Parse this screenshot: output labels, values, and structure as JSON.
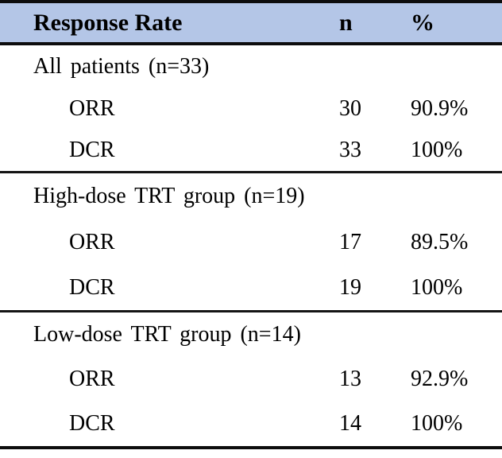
{
  "colors": {
    "header_bg": "#B4C6E7",
    "rule": "#000000",
    "text": "#000000"
  },
  "table": {
    "header": {
      "col1": "Response Rate",
      "col2": "n",
      "col3": "%"
    },
    "sections": [
      {
        "title": "All patients (n=33)",
        "rows": [
          {
            "label": "ORR",
            "n": "30",
            "pct": "90.9%"
          },
          {
            "label": "DCR",
            "n": "33",
            "pct": "100%"
          }
        ]
      },
      {
        "title": "High-dose TRT group (n=19)",
        "rows": [
          {
            "label": "ORR",
            "n": "17",
            "pct": "89.5%"
          },
          {
            "label": "DCR",
            "n": "19",
            "pct": "100%"
          }
        ]
      },
      {
        "title": "Low-dose TRT group (n=14)",
        "rows": [
          {
            "label": "ORR",
            "n": "13",
            "pct": "92.9%"
          },
          {
            "label": "DCR",
            "n": "14",
            "pct": "100%"
          }
        ]
      }
    ]
  }
}
